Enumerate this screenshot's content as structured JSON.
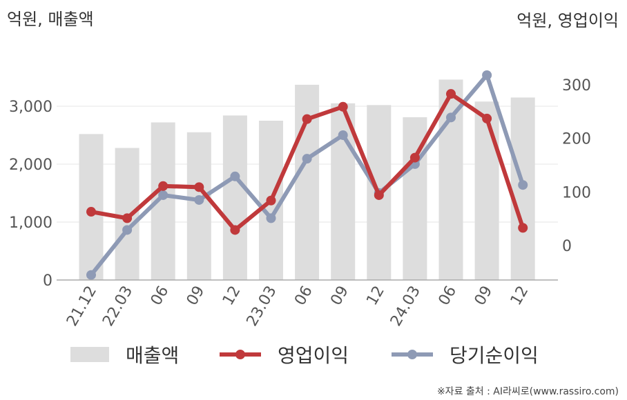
{
  "chart_data": {
    "type": "bar",
    "left_axis_unit": "억원, 매출액",
    "right_axis_unit": "억원, 영업이익",
    "categories": [
      "21.12",
      "22.03",
      "06",
      "09",
      "12",
      "23.03",
      "06",
      "09",
      "12",
      "24.03",
      "06",
      "09",
      "12"
    ],
    "series": [
      {
        "name": "매출액",
        "type": "bar",
        "axis": "left",
        "color": "#dddddd",
        "values": [
          2520,
          2280,
          2720,
          2550,
          2840,
          2750,
          3370,
          3050,
          3020,
          2810,
          3460,
          3080,
          3150
        ]
      },
      {
        "name": "영업이익",
        "type": "line",
        "axis": "right",
        "color": "#c0393b",
        "values": [
          63,
          51,
          111,
          109,
          29,
          84,
          236,
          259,
          94,
          164,
          283,
          237,
          33
        ]
      },
      {
        "name": "당기순이익",
        "type": "line",
        "axis": "right",
        "color": "#8e9ab5",
        "values": [
          -55,
          29,
          94,
          85,
          129,
          51,
          162,
          206,
          98,
          152,
          239,
          318,
          113
        ]
      }
    ],
    "left_axis": {
      "ticks": [
        0,
        1000,
        2000,
        3000
      ],
      "tick_labels": [
        "0",
        "1,000",
        "2,000",
        "3,000"
      ],
      "range": [
        0,
        4800
      ]
    },
    "right_axis": {
      "ticks": [
        0,
        100,
        200,
        300
      ],
      "tick_labels": [
        "0",
        "100",
        "200",
        "300"
      ],
      "range": [
        -65,
        458
      ]
    },
    "grid": true,
    "legend_position": "bottom",
    "source_note": "※자료 출처 : AI라씨로(www.rassiro.com)"
  }
}
